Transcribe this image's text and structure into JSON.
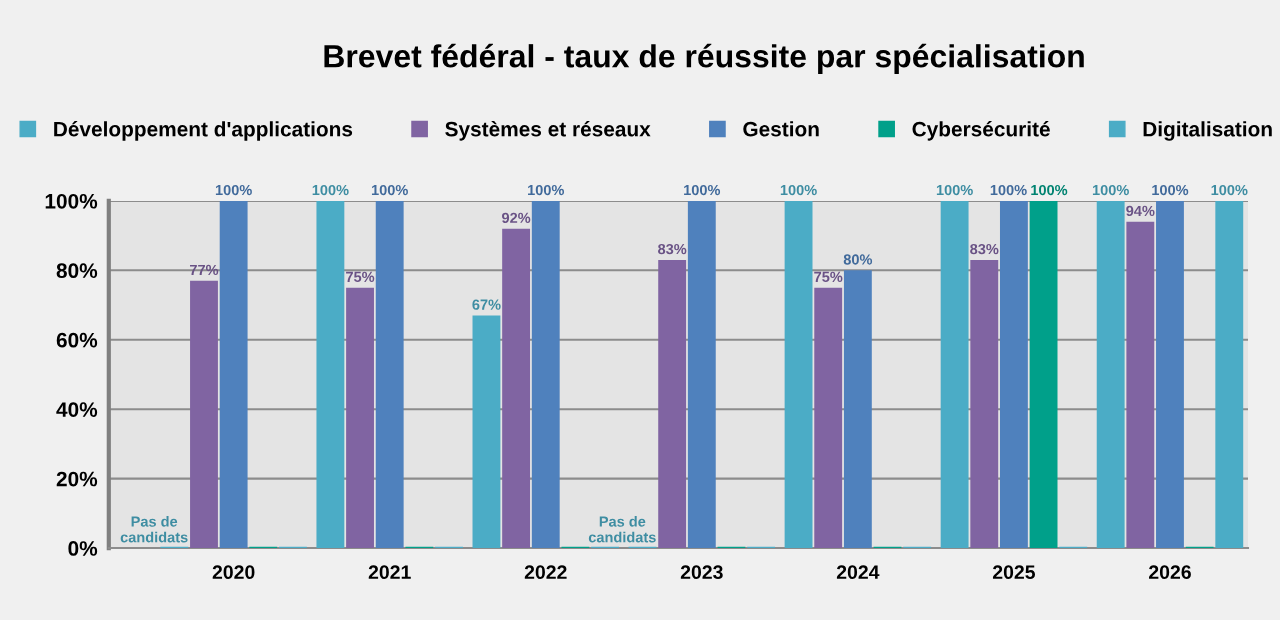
{
  "chart_data": {
    "type": "bar",
    "title": "Brevet fédéral - taux de réussite par spécialisation",
    "categories": [
      "2020",
      "2021",
      "2022",
      "2023",
      "2024",
      "2025",
      "2026"
    ],
    "series": [
      {
        "name": "Développement d'applications",
        "color": "#4bacc6",
        "values": [
          0,
          100,
          67,
          0,
          100,
          100,
          100
        ],
        "value_labels": [
          "Pas de\ncandidats",
          "100%",
          "67%",
          "Pas de\ncandidats",
          "100%",
          "100%",
          "100%"
        ]
      },
      {
        "name": "Systèmes et réseaux",
        "color": "#8064a2",
        "values": [
          77,
          75,
          92,
          83,
          75,
          83,
          94
        ],
        "value_labels": [
          "77%",
          "75%",
          "92%",
          "83%",
          "75%",
          "83%",
          "94%"
        ]
      },
      {
        "name": "Gestion",
        "color": "#4f81bd",
        "values": [
          100,
          100,
          100,
          100,
          80,
          100,
          100
        ],
        "value_labels": [
          "100%",
          "100%",
          "100%",
          "100%",
          "80%",
          "100%",
          "100%"
        ]
      },
      {
        "name": "Cybersécurité",
        "color": "#00a08a",
        "values": [
          0,
          0,
          0,
          0,
          0,
          100,
          0
        ],
        "value_labels": [
          null,
          null,
          null,
          null,
          null,
          "100%",
          null
        ]
      },
      {
        "name": "Digitalisation",
        "color": "#4bacc6",
        "values": [
          0,
          0,
          0,
          0,
          0,
          0,
          100
        ],
        "value_labels": [
          null,
          null,
          null,
          null,
          null,
          null,
          "100%"
        ]
      }
    ],
    "ylim": [
      0,
      100
    ],
    "yticks": [
      {
        "value": 0,
        "label": "0%"
      },
      {
        "value": 20,
        "label": "20%"
      },
      {
        "value": 40,
        "label": "40%"
      },
      {
        "value": 60,
        "label": "60%"
      },
      {
        "value": 80,
        "label": "80%"
      },
      {
        "value": 100,
        "label": "100%"
      }
    ],
    "grid": "y",
    "legend": "top"
  }
}
